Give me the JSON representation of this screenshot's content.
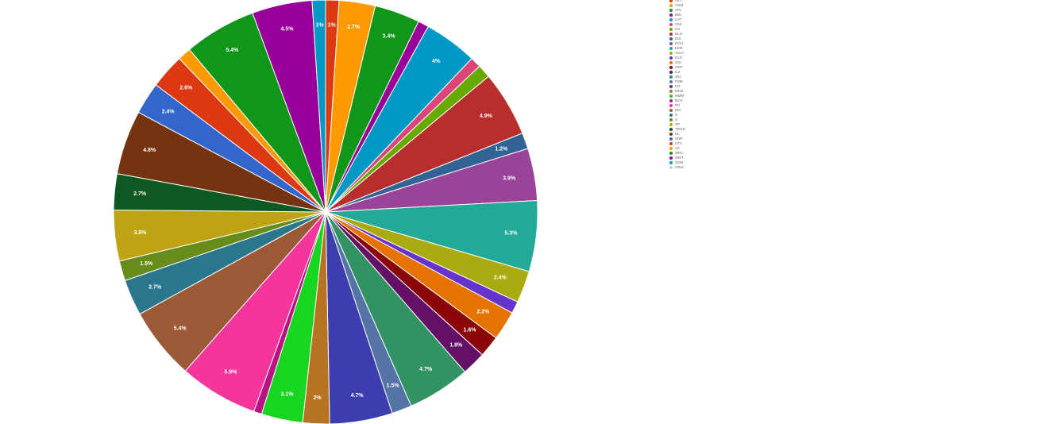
{
  "chart_data": {
    "type": "pie",
    "title": "",
    "legend_position": "right",
    "start_angle_deg": 0,
    "direction": "clockwise",
    "slices": [
      {
        "label": "AET",
        "value": 1.0,
        "display": "1%",
        "color": "#dc3912"
      },
      {
        "label": "AGM",
        "value": 2.7,
        "display": "2.7%",
        "color": "#ff9900"
      },
      {
        "label": "APL",
        "value": 3.4,
        "display": "3.4%",
        "color": "#109618"
      },
      {
        "label": "BRL",
        "value": 0.8,
        "display": "",
        "color": "#990099"
      },
      {
        "label": "CAT",
        "value": 4.0,
        "display": "4%",
        "color": "#0099c6"
      },
      {
        "label": "CMI",
        "value": 0.8,
        "display": "",
        "color": "#dd4477"
      },
      {
        "label": "CS",
        "value": 1.0,
        "display": "",
        "color": "#66aa00"
      },
      {
        "label": "DLG",
        "value": 4.9,
        "display": "4.9%",
        "color": "#b82e2e"
      },
      {
        "label": "DIS",
        "value": 1.2,
        "display": "1.2%",
        "color": "#316395"
      },
      {
        "label": "DOU",
        "value": 3.9,
        "display": "3.9%",
        "color": "#994499"
      },
      {
        "label": "EMR",
        "value": 5.3,
        "display": "5.3%",
        "color": "#22aa99"
      },
      {
        "label": "AGLT",
        "value": 2.4,
        "display": "2.4%",
        "color": "#aaaa11"
      },
      {
        "label": "GLG",
        "value": 0.9,
        "display": "",
        "color": "#6633cc"
      },
      {
        "label": "GIS",
        "value": 2.2,
        "display": "2.2%",
        "color": "#e67300"
      },
      {
        "label": "HOP",
        "value": 1.6,
        "display": "1.6%",
        "color": "#8b0707"
      },
      {
        "label": "ILZ",
        "value": 1.8,
        "display": "1.8%",
        "color": "#651067"
      },
      {
        "label": "JNJ",
        "value": 4.7,
        "display": "4.7%",
        "color": "#329262"
      },
      {
        "label": "KMB",
        "value": 1.5,
        "display": "1.5%",
        "color": "#5574a6"
      },
      {
        "label": "KO",
        "value": 4.7,
        "display": "4.7%",
        "color": "#3b3eac"
      },
      {
        "label": "MCD",
        "value": 2.0,
        "display": "2%",
        "color": "#b77322"
      },
      {
        "label": "MMM",
        "value": 3.1,
        "display": "3.1%",
        "color": "#16d620"
      },
      {
        "label": "NOV",
        "value": 0.6,
        "display": "",
        "color": "#b91383"
      },
      {
        "label": "PG",
        "value": 5.9,
        "display": "5.9%",
        "color": "#f4359e"
      },
      {
        "label": "RM",
        "value": 5.4,
        "display": "5.4%",
        "color": "#9c5935"
      },
      {
        "label": "S",
        "value": 2.7,
        "display": "2.7%",
        "color": "#2a778d"
      },
      {
        "label": "S",
        "value": 1.5,
        "display": "1.5%",
        "color": "#668d1c"
      },
      {
        "label": "SP",
        "value": 3.8,
        "display": "3.8%",
        "color": "#bea413"
      },
      {
        "label": "TRGN",
        "value": 2.7,
        "display": "2.7%",
        "color": "#0c5922"
      },
      {
        "label": "UL",
        "value": 4.8,
        "display": "4.8%",
        "color": "#743411"
      },
      {
        "label": "UNP",
        "value": 2.4,
        "display": "2.4%",
        "color": "#3366cc"
      },
      {
        "label": "UTX",
        "value": 2.6,
        "display": "2.6%",
        "color": "#dc3912"
      },
      {
        "label": "VZ",
        "value": 1.0,
        "display": "",
        "color": "#ff9900"
      },
      {
        "label": "WPC",
        "value": 5.4,
        "display": "5.4%",
        "color": "#109618"
      },
      {
        "label": "WMT",
        "value": 4.5,
        "display": "4.5%",
        "color": "#990099"
      },
      {
        "label": "XOM",
        "value": 1.0,
        "display": "1%",
        "color": "#0099c6"
      }
    ],
    "legend_other": {
      "label": "Other",
      "color": "#cccccc"
    }
  }
}
